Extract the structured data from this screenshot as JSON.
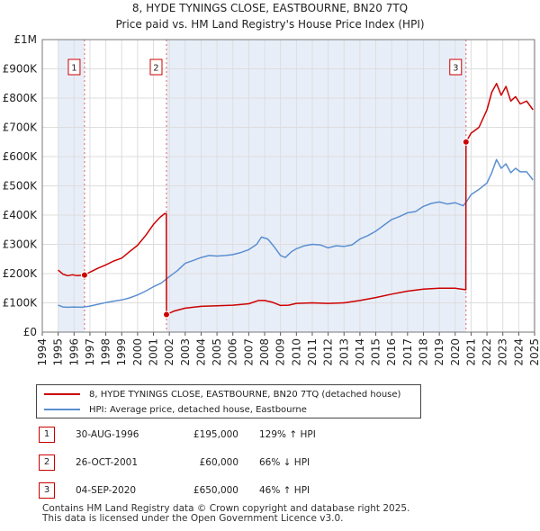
{
  "chart_data": {
    "type": "line",
    "title": "8, HYDE TYNINGS CLOSE, EASTBOURNE, BN20 7TQ",
    "subtitle": "Price paid vs. HM Land Registry's House Price Index (HPI)",
    "xlim": [
      1994,
      2025
    ],
    "ylim": [
      0,
      1000000
    ],
    "y_ticks": [
      0,
      100000,
      200000,
      300000,
      400000,
      500000,
      600000,
      700000,
      800000,
      900000,
      1000000
    ],
    "y_tick_labels": [
      "£0",
      "£100K",
      "£200K",
      "£300K",
      "£400K",
      "£500K",
      "£600K",
      "£700K",
      "£800K",
      "£900K",
      "£1M"
    ],
    "x_ticks": [
      1994,
      1995,
      1996,
      1997,
      1998,
      1999,
      2000,
      2001,
      2002,
      2003,
      2004,
      2005,
      2006,
      2007,
      2008,
      2009,
      2010,
      2011,
      2012,
      2013,
      2014,
      2015,
      2016,
      2017,
      2018,
      2019,
      2020,
      2021,
      2022,
      2023,
      2024,
      2025
    ],
    "x_tick_labels": [
      "1994",
      "1995",
      "1996",
      "1997",
      "1998",
      "1999",
      "2000",
      "2001",
      "2002",
      "2003",
      "2004",
      "2005",
      "2006",
      "2007",
      "2008",
      "2009",
      "2010",
      "2011",
      "2012",
      "2013",
      "2014",
      "2015",
      "2016",
      "2017",
      "2018",
      "2019",
      "2020",
      "2021",
      "2022",
      "2023",
      "2024",
      "2025"
    ],
    "shaded_periods": [
      [
        1995.0,
        1996.66
      ],
      [
        2001.82,
        2020.68
      ],
      [
        2024.92,
        2025.0
      ]
    ],
    "series": [
      {
        "name": "8, HYDE TYNINGS CLOSE, EASTBOURNE, BN20 7TQ (detached house)",
        "color": "#cc0000",
        "points": [
          [
            1995.0,
            212000
          ],
          [
            1995.3,
            198000
          ],
          [
            1995.6,
            193000
          ],
          [
            1995.9,
            196000
          ],
          [
            1996.2,
            193000
          ],
          [
            1996.66,
            195000
          ],
          [
            1997.0,
            205000
          ],
          [
            1997.5,
            218000
          ],
          [
            1998.0,
            230000
          ],
          [
            1998.5,
            243000
          ],
          [
            1999.0,
            253000
          ],
          [
            1999.5,
            275000
          ],
          [
            2000.0,
            297000
          ],
          [
            2000.5,
            330000
          ],
          [
            2001.0,
            368000
          ],
          [
            2001.4,
            392000
          ],
          [
            2001.7,
            405000
          ],
          [
            2001.81,
            405000
          ],
          [
            2001.82,
            60000
          ],
          [
            2002.3,
            72000
          ],
          [
            2003.0,
            82000
          ],
          [
            2004.0,
            88000
          ],
          [
            2005.0,
            90000
          ],
          [
            2006.0,
            92000
          ],
          [
            2007.0,
            97000
          ],
          [
            2007.6,
            108000
          ],
          [
            2008.0,
            108000
          ],
          [
            2008.5,
            102000
          ],
          [
            2009.0,
            91000
          ],
          [
            2009.5,
            92000
          ],
          [
            2010.0,
            98000
          ],
          [
            2011.0,
            100000
          ],
          [
            2012.0,
            98000
          ],
          [
            2013.0,
            100000
          ],
          [
            2014.0,
            108000
          ],
          [
            2015.0,
            118000
          ],
          [
            2016.0,
            130000
          ],
          [
            2017.0,
            140000
          ],
          [
            2018.0,
            147000
          ],
          [
            2019.0,
            150000
          ],
          [
            2020.0,
            150000
          ],
          [
            2020.67,
            145000
          ],
          [
            2020.68,
            650000
          ],
          [
            2021.0,
            680000
          ],
          [
            2021.5,
            700000
          ],
          [
            2022.0,
            760000
          ],
          [
            2022.3,
            820000
          ],
          [
            2022.6,
            850000
          ],
          [
            2022.9,
            810000
          ],
          [
            2023.2,
            840000
          ],
          [
            2023.5,
            790000
          ],
          [
            2023.8,
            805000
          ],
          [
            2024.1,
            780000
          ],
          [
            2024.5,
            790000
          ],
          [
            2024.9,
            760000
          ]
        ]
      },
      {
        "name": "HPI: Average price, detached house, Eastbourne",
        "color": "#5b8fd1",
        "points": [
          [
            1995.0,
            92000
          ],
          [
            1995.3,
            86000
          ],
          [
            1995.6,
            85000
          ],
          [
            1996.0,
            86000
          ],
          [
            1996.5,
            85000
          ],
          [
            1997.0,
            89000
          ],
          [
            1997.5,
            95000
          ],
          [
            1998.0,
            101000
          ],
          [
            1998.5,
            106000
          ],
          [
            1999.0,
            110000
          ],
          [
            1999.5,
            117000
          ],
          [
            2000.0,
            127000
          ],
          [
            2000.5,
            140000
          ],
          [
            2001.0,
            155000
          ],
          [
            2001.5,
            168000
          ],
          [
            2002.0,
            190000
          ],
          [
            2002.5,
            210000
          ],
          [
            2003.0,
            235000
          ],
          [
            2003.5,
            245000
          ],
          [
            2004.0,
            255000
          ],
          [
            2004.5,
            262000
          ],
          [
            2005.0,
            260000
          ],
          [
            2005.5,
            262000
          ],
          [
            2006.0,
            265000
          ],
          [
            2006.5,
            272000
          ],
          [
            2007.0,
            282000
          ],
          [
            2007.5,
            300000
          ],
          [
            2007.8,
            325000
          ],
          [
            2008.2,
            318000
          ],
          [
            2008.6,
            292000
          ],
          [
            2009.0,
            262000
          ],
          [
            2009.3,
            255000
          ],
          [
            2009.7,
            275000
          ],
          [
            2010.0,
            285000
          ],
          [
            2010.5,
            295000
          ],
          [
            2011.0,
            300000
          ],
          [
            2011.5,
            298000
          ],
          [
            2012.0,
            288000
          ],
          [
            2012.5,
            295000
          ],
          [
            2013.0,
            293000
          ],
          [
            2013.5,
            298000
          ],
          [
            2014.0,
            318000
          ],
          [
            2014.5,
            330000
          ],
          [
            2015.0,
            345000
          ],
          [
            2015.5,
            365000
          ],
          [
            2016.0,
            385000
          ],
          [
            2016.5,
            395000
          ],
          [
            2017.0,
            408000
          ],
          [
            2017.5,
            412000
          ],
          [
            2018.0,
            430000
          ],
          [
            2018.5,
            440000
          ],
          [
            2019.0,
            445000
          ],
          [
            2019.5,
            438000
          ],
          [
            2020.0,
            442000
          ],
          [
            2020.5,
            432000
          ],
          [
            2020.7,
            445000
          ],
          [
            2021.0,
            470000
          ],
          [
            2021.5,
            488000
          ],
          [
            2022.0,
            510000
          ],
          [
            2022.3,
            545000
          ],
          [
            2022.6,
            590000
          ],
          [
            2022.9,
            560000
          ],
          [
            2023.2,
            575000
          ],
          [
            2023.5,
            545000
          ],
          [
            2023.8,
            560000
          ],
          [
            2024.1,
            548000
          ],
          [
            2024.5,
            548000
          ],
          [
            2024.9,
            520000
          ]
        ]
      }
    ],
    "transactions": [
      {
        "num": "1",
        "x": 1996.66,
        "price": 195000
      },
      {
        "num": "2",
        "x": 2001.82,
        "price": 60000
      },
      {
        "num": "3",
        "x": 2020.68,
        "price": 650000
      }
    ]
  },
  "legend": {
    "property_label": "8, HYDE TYNINGS CLOSE, EASTBOURNE, BN20 7TQ (detached house)",
    "hpi_label": "HPI: Average price, detached house, Eastbourne"
  },
  "transactions_table": [
    {
      "num": "1",
      "date": "30-AUG-1996",
      "price": "£195,000",
      "hpi": "129% ↑ HPI"
    },
    {
      "num": "2",
      "date": "26-OCT-2001",
      "price": "£60,000",
      "hpi": "66% ↓ HPI"
    },
    {
      "num": "3",
      "date": "04-SEP-2020",
      "price": "£650,000",
      "hpi": "46% ↑ HPI"
    }
  ],
  "footer": {
    "line1": "Contains HM Land Registry data © Crown copyright and database right 2025.",
    "line2": "This data is licensed under the Open Government Licence v3.0."
  },
  "colors": {
    "property": "#cc0000",
    "hpi": "#5b8fd1",
    "shade": "#e8eef8",
    "grid": "#dddddd"
  }
}
